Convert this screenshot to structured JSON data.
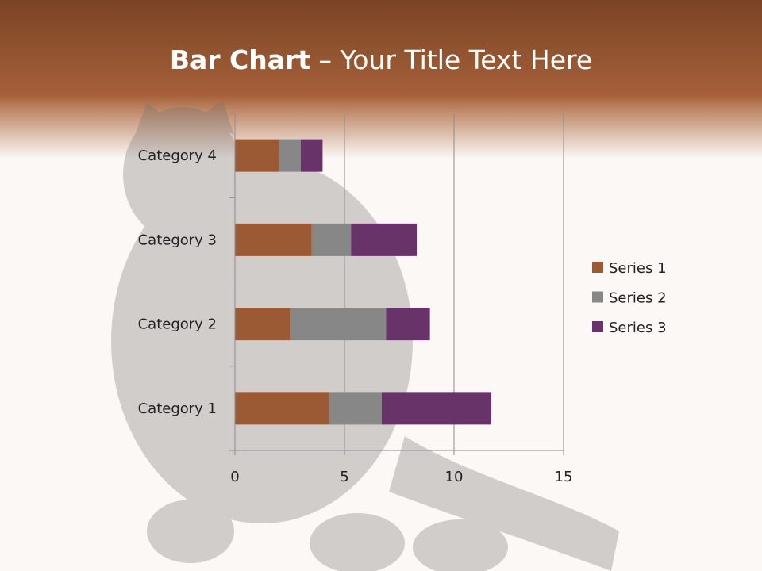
{
  "slide": {
    "title_bold": "Bar Chart",
    "title_sep": " – ",
    "title_rest": "Your Title Text Here"
  },
  "chart_data": {
    "type": "bar",
    "orientation": "horizontal",
    "stacked": true,
    "categories": [
      "Category 1",
      "Category 2",
      "Category 3",
      "Category 4"
    ],
    "series": [
      {
        "name": "Series 1",
        "values": [
          4.3,
          2.5,
          3.5,
          2.0
        ],
        "color": "#9c5a34"
      },
      {
        "name": "Series 2",
        "values": [
          2.4,
          4.4,
          1.8,
          1.0
        ],
        "color": "#878787"
      },
      {
        "name": "Series 3",
        "values": [
          5.0,
          2.0,
          3.0,
          1.0
        ],
        "color": "#683369"
      }
    ],
    "xlim": [
      0,
      15
    ],
    "xticks": [
      0,
      5,
      10,
      15
    ],
    "grid": true,
    "legend": "right"
  }
}
